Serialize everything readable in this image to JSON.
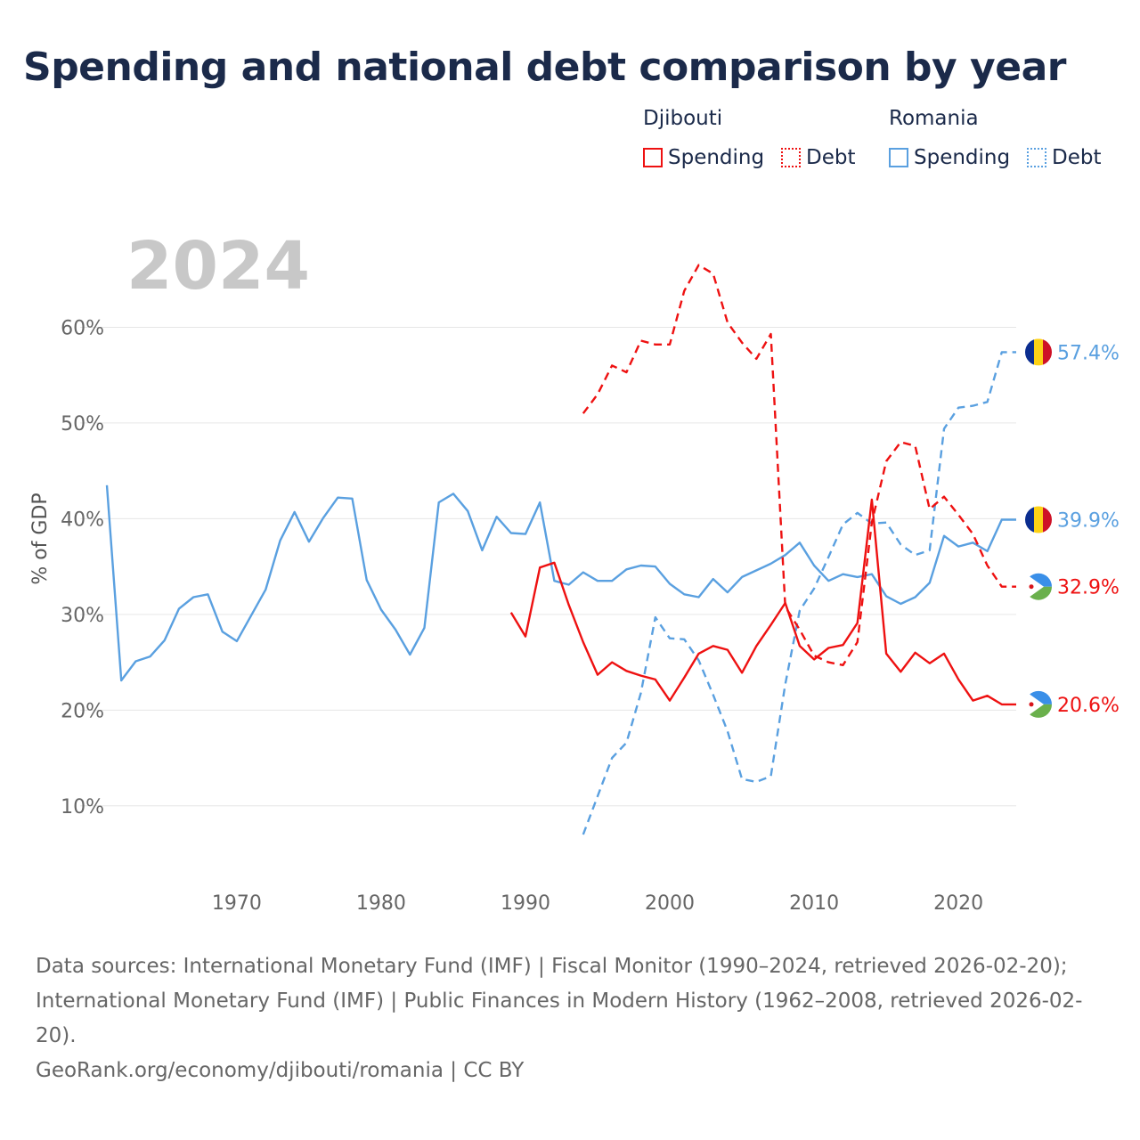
{
  "page": {
    "title": "Spending and national debt comparison by year"
  },
  "legend": {
    "groups": [
      {
        "country": "Djibouti",
        "color": "#ee1111",
        "spending_label": "Spending",
        "debt_label": "Debt"
      },
      {
        "country": "Romania",
        "color": "#5aa0e0",
        "spending_label": "Spending",
        "debt_label": "Debt"
      }
    ]
  },
  "footer": {
    "sources": "Data sources: International Monetary Fund (IMF) | Fiscal Monitor (1990–2024, retrieved 2026-02-20); International Monetary Fund (IMF) | Public Finances in Modern History (1962–2008, retrieved 2026-02-20).",
    "credit": "GeoRank.org/economy/djibouti/romania | CC BY"
  },
  "chart_data": {
    "type": "line",
    "title": "Spending and national debt comparison by year",
    "year_label": "2024",
    "ylabel": "% of GDP",
    "xlim": [
      1961,
      2024
    ],
    "ylim": [
      3,
      70
    ],
    "x_ticks": [
      1970,
      1980,
      1990,
      2000,
      2010,
      2020
    ],
    "y_ticks": [
      10,
      20,
      30,
      40,
      50,
      60
    ],
    "y_tick_labels": [
      "10%",
      "20%",
      "30%",
      "40%",
      "50%",
      "60%"
    ],
    "series": [
      {
        "name": "Romania Spending",
        "country": "Romania",
        "metric": "Spending",
        "color": "#5aa0e0",
        "dash": "solid",
        "flag": "romania",
        "end_label": "39.9%",
        "end_value": 39.9,
        "points": [
          [
            1961,
            43.5
          ],
          [
            1962,
            23.1
          ],
          [
            1963,
            25.1
          ],
          [
            1964,
            25.6
          ],
          [
            1965,
            27.3
          ],
          [
            1966,
            30.6
          ],
          [
            1967,
            31.8
          ],
          [
            1968,
            32.1
          ],
          [
            1969,
            28.2
          ],
          [
            1970,
            27.2
          ],
          [
            1971,
            29.9
          ],
          [
            1972,
            32.6
          ],
          [
            1973,
            37.7
          ],
          [
            1974,
            40.7
          ],
          [
            1975,
            37.6
          ],
          [
            1976,
            40.1
          ],
          [
            1977,
            42.2
          ],
          [
            1978,
            42.1
          ],
          [
            1979,
            33.6
          ],
          [
            1980,
            30.5
          ],
          [
            1981,
            28.4
          ],
          [
            1982,
            25.8
          ],
          [
            1983,
            28.6
          ],
          [
            1984,
            41.7
          ],
          [
            1985,
            42.6
          ],
          [
            1986,
            40.8
          ],
          [
            1987,
            36.7
          ],
          [
            1988,
            40.2
          ],
          [
            1989,
            38.5
          ],
          [
            1990,
            38.4
          ],
          [
            1991,
            41.7
          ],
          [
            1992,
            33.5
          ],
          [
            1993,
            33.1
          ],
          [
            1994,
            34.4
          ],
          [
            1995,
            33.5
          ],
          [
            1996,
            33.5
          ],
          [
            1997,
            34.7
          ],
          [
            1998,
            35.1
          ],
          [
            1999,
            35.0
          ],
          [
            2000,
            33.2
          ],
          [
            2001,
            32.1
          ],
          [
            2002,
            31.8
          ],
          [
            2003,
            33.7
          ],
          [
            2004,
            32.3
          ],
          [
            2005,
            33.9
          ],
          [
            2006,
            34.6
          ],
          [
            2007,
            35.3
          ],
          [
            2008,
            36.2
          ],
          [
            2009,
            37.5
          ],
          [
            2010,
            35.1
          ],
          [
            2011,
            33.5
          ],
          [
            2012,
            34.2
          ],
          [
            2013,
            33.9
          ],
          [
            2014,
            34.2
          ],
          [
            2015,
            31.9
          ],
          [
            2016,
            31.1
          ],
          [
            2017,
            31.8
          ],
          [
            2018,
            33.3
          ],
          [
            2019,
            38.2
          ],
          [
            2020,
            37.1
          ],
          [
            2021,
            37.5
          ],
          [
            2022,
            36.6
          ],
          [
            2023,
            39.9
          ],
          [
            2024,
            39.9
          ]
        ]
      },
      {
        "name": "Romania Debt",
        "country": "Romania",
        "metric": "Debt",
        "color": "#5aa0e0",
        "dash": "dashed",
        "flag": "romania",
        "end_label": "57.4%",
        "end_value": 57.4,
        "points": [
          [
            1994,
            7.0
          ],
          [
            1995,
            11.0
          ],
          [
            1996,
            15.0
          ],
          [
            1997,
            16.6
          ],
          [
            1998,
            21.8
          ],
          [
            1999,
            29.7
          ],
          [
            2000,
            27.5
          ],
          [
            2001,
            27.4
          ],
          [
            2002,
            25.2
          ],
          [
            2003,
            21.6
          ],
          [
            2004,
            17.8
          ],
          [
            2005,
            12.8
          ],
          [
            2006,
            12.5
          ],
          [
            2007,
            13.1
          ],
          [
            2008,
            22.7
          ],
          [
            2009,
            30.4
          ],
          [
            2010,
            32.7
          ],
          [
            2011,
            36.0
          ],
          [
            2012,
            39.4
          ],
          [
            2013,
            40.6
          ],
          [
            2014,
            39.5
          ],
          [
            2015,
            39.6
          ],
          [
            2016,
            37.3
          ],
          [
            2017,
            36.2
          ],
          [
            2018,
            36.7
          ],
          [
            2019,
            49.4
          ],
          [
            2020,
            51.6
          ],
          [
            2021,
            51.8
          ],
          [
            2022,
            52.2
          ],
          [
            2023,
            57.4
          ],
          [
            2024,
            57.4
          ]
        ]
      },
      {
        "name": "Djibouti Spending",
        "country": "Djibouti",
        "metric": "Spending",
        "color": "#ee1111",
        "dash": "solid",
        "flag": "djibouti",
        "end_label": "20.6%",
        "end_value": 20.6,
        "points": [
          [
            1989,
            30.2
          ],
          [
            1990,
            27.7
          ],
          [
            1991,
            34.9
          ],
          [
            1992,
            35.4
          ],
          [
            1993,
            31.0
          ],
          [
            1994,
            27.1
          ],
          [
            1995,
            23.7
          ],
          [
            1996,
            25.0
          ],
          [
            1997,
            24.1
          ],
          [
            1998,
            23.6
          ],
          [
            1999,
            23.2
          ],
          [
            2000,
            21.0
          ],
          [
            2001,
            23.4
          ],
          [
            2002,
            25.9
          ],
          [
            2003,
            26.7
          ],
          [
            2004,
            26.3
          ],
          [
            2005,
            23.9
          ],
          [
            2006,
            26.7
          ],
          [
            2007,
            28.9
          ],
          [
            2008,
            31.2
          ],
          [
            2009,
            26.7
          ],
          [
            2010,
            25.3
          ],
          [
            2011,
            26.5
          ],
          [
            2012,
            26.8
          ],
          [
            2013,
            29.1
          ],
          [
            2014,
            42.0
          ],
          [
            2015,
            25.9
          ],
          [
            2016,
            24.0
          ],
          [
            2017,
            26.0
          ],
          [
            2018,
            24.9
          ],
          [
            2019,
            25.9
          ],
          [
            2020,
            23.2
          ],
          [
            2021,
            21.0
          ],
          [
            2022,
            21.5
          ],
          [
            2023,
            20.6
          ],
          [
            2024,
            20.6
          ]
        ]
      },
      {
        "name": "Djibouti Debt",
        "country": "Djibouti",
        "metric": "Debt",
        "color": "#ee1111",
        "dash": "dashed",
        "flag": "djibouti",
        "end_label": "32.9%",
        "end_value": 32.9,
        "points": [
          [
            1994,
            51.0
          ],
          [
            1995,
            53.0
          ],
          [
            1996,
            56.0
          ],
          [
            1997,
            55.3
          ],
          [
            1998,
            58.6
          ],
          [
            1999,
            58.2
          ],
          [
            2000,
            58.2
          ],
          [
            2001,
            63.8
          ],
          [
            2002,
            66.5
          ],
          [
            2003,
            65.6
          ],
          [
            2004,
            60.5
          ],
          [
            2005,
            58.4
          ],
          [
            2006,
            56.7
          ],
          [
            2007,
            59.3
          ],
          [
            2008,
            30.8
          ],
          [
            2009,
            28.4
          ],
          [
            2010,
            25.7
          ],
          [
            2011,
            25.0
          ],
          [
            2012,
            24.7
          ],
          [
            2013,
            27.1
          ],
          [
            2014,
            39.6
          ],
          [
            2015,
            46.0
          ],
          [
            2016,
            48.0
          ],
          [
            2017,
            47.6
          ],
          [
            2018,
            41.0
          ],
          [
            2019,
            42.3
          ],
          [
            2020,
            40.4
          ],
          [
            2021,
            38.4
          ],
          [
            2022,
            35.1
          ],
          [
            2023,
            32.9
          ],
          [
            2024,
            32.9
          ]
        ]
      }
    ]
  }
}
